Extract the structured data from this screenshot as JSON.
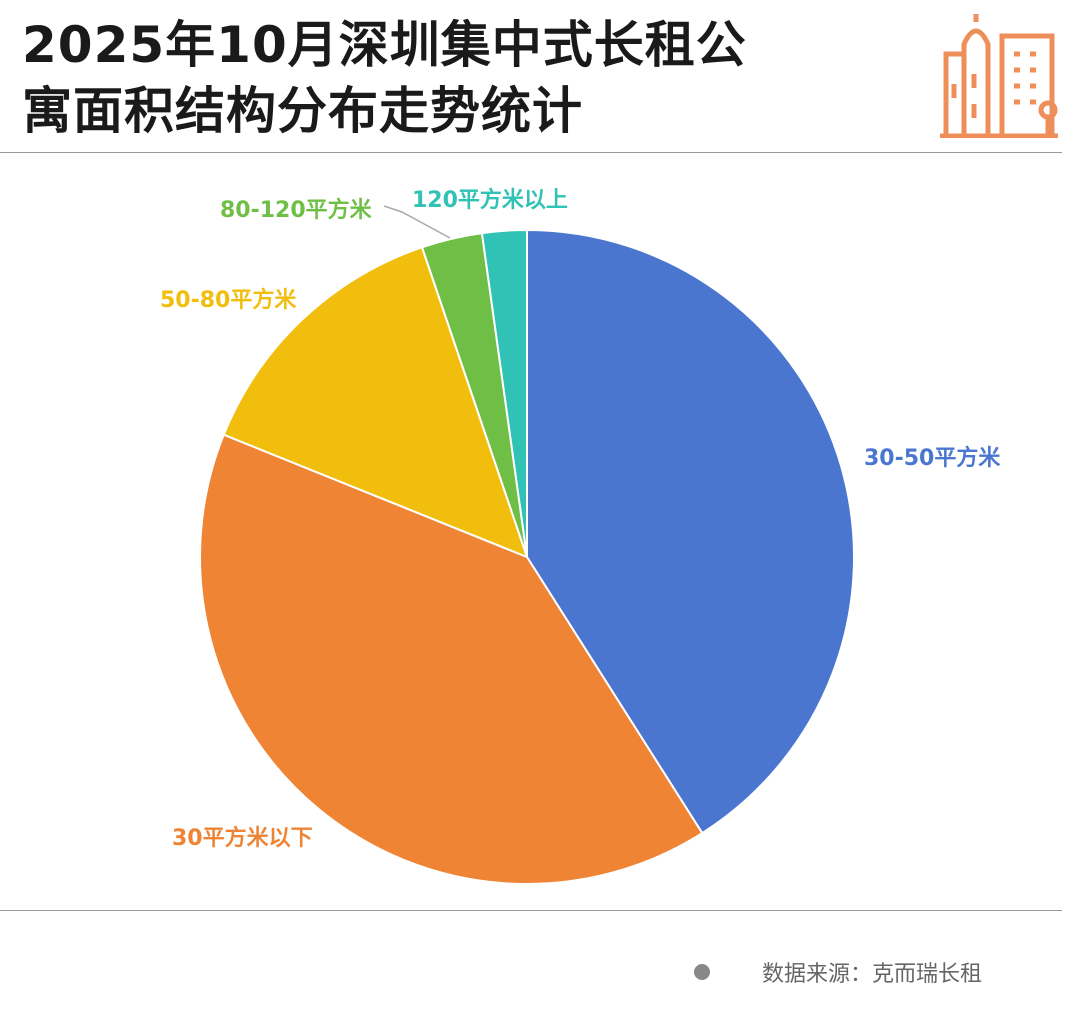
{
  "title_lines": [
    "2025年10月深圳集中式长租公",
    "寓面积结构分布走势统计"
  ],
  "footer": {
    "source": "数据来源：克而瑞长租"
  },
  "icon": "city-buildings-icon",
  "chart_data": {
    "type": "pie",
    "title": "2025年10月深圳集中式长租公寓面积结构分布走势统计",
    "start": "top",
    "direction": "clockwise",
    "categories": [
      "30-50平方米",
      "30平方米以下",
      "50-80平方米",
      "80-120平方米",
      "120平方米以上"
    ],
    "values": [
      41.0,
      40.1,
      13.7,
      3.0,
      2.2
    ],
    "unit": "%",
    "colors": [
      "#4a76cf",
      "#ee8434",
      "#f2be0e",
      "#6fbf46",
      "#30c2b4"
    ]
  }
}
